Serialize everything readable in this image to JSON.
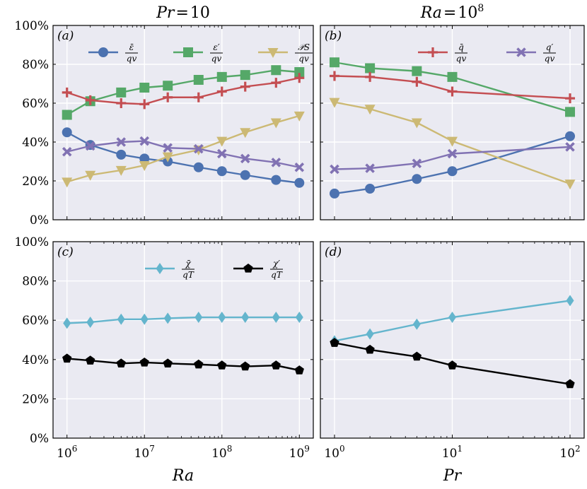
{
  "chart_data": [
    {
      "panel": "a",
      "type": "line",
      "title": "Pr = 10",
      "title_parts": [
        "Pr",
        "=",
        "10"
      ],
      "panel_label": "(a)",
      "xscale": "log",
      "xlim": [
        1000000,
        1000000000
      ],
      "ylim": [
        0,
        100
      ],
      "yticks": [
        "0%",
        "20%",
        "40%",
        "60%",
        "80%",
        "100%"
      ],
      "x": [
        1000000,
        2000000,
        5000000,
        10000000,
        20000000,
        50000000,
        100000000,
        200000000,
        500000000,
        1000000000
      ],
      "series": [
        {
          "name": "eps_bar/q_v",
          "num": "ε̄",
          "den": "qv",
          "color": "#4c72b0",
          "marker": "circle",
          "values": [
            45.0,
            38.5,
            33.5,
            31.5,
            30.0,
            27.0,
            25.0,
            23.0,
            20.5,
            19.0
          ]
        },
        {
          "name": "eps_prime/q_v",
          "num": "ε′",
          "den": "qv",
          "color": "#55a868",
          "marker": "square",
          "values": [
            54.0,
            61.0,
            65.5,
            68.0,
            69.0,
            72.0,
            73.5,
            74.5,
            77.0,
            76.0
          ]
        },
        {
          "name": "P_S/q_v",
          "num": "𝒫S",
          "den": "qv",
          "color": "#ccb974",
          "marker": "triangle-down",
          "values": [
            19.5,
            23.0,
            25.5,
            28.0,
            32.5,
            36.0,
            40.5,
            45.0,
            50.0,
            53.5
          ]
        },
        {
          "name": "q_bar/q_v",
          "color": "#c44e52",
          "marker": "plus",
          "values": [
            65.5,
            61.5,
            60.0,
            59.5,
            63.0,
            63.0,
            66.0,
            68.5,
            70.5,
            73.0
          ]
        },
        {
          "name": "q_prime/q_v",
          "color": "#8172b3",
          "marker": "x",
          "values": [
            35.0,
            38.0,
            40.0,
            40.5,
            37.0,
            36.5,
            34.0,
            31.5,
            29.5,
            27.0
          ]
        }
      ],
      "legend_series": [
        0,
        1,
        2
      ]
    },
    {
      "panel": "b",
      "type": "line",
      "title": "Ra = 10^8",
      "title_parts": [
        "Ra",
        "=",
        "10",
        "8"
      ],
      "panel_label": "(b)",
      "xscale": "log",
      "xlim": [
        1,
        100
      ],
      "ylim": [
        0,
        100
      ],
      "x": [
        1,
        2,
        5,
        10,
        100
      ],
      "series": [
        {
          "name": "eps_bar/q_v",
          "color": "#4c72b0",
          "marker": "circle",
          "values": [
            13.5,
            16.0,
            21.0,
            25.0,
            43.0
          ]
        },
        {
          "name": "eps_prime/q_v",
          "color": "#55a868",
          "marker": "square",
          "values": [
            81.0,
            78.0,
            76.5,
            73.5,
            55.5
          ]
        },
        {
          "name": "P_S/q_v",
          "color": "#ccb974",
          "marker": "triangle-down",
          "values": [
            60.5,
            57.0,
            50.0,
            40.5,
            18.5
          ]
        },
        {
          "name": "q_bar/q_v",
          "num": "q̄",
          "den": "qv",
          "color": "#c44e52",
          "marker": "plus",
          "values": [
            74.0,
            73.5,
            71.0,
            66.0,
            62.5
          ]
        },
        {
          "name": "q_prime/q_v",
          "num": "q′",
          "den": "qv",
          "color": "#8172b3",
          "marker": "x",
          "values": [
            26.0,
            26.5,
            29.0,
            34.0,
            37.5
          ]
        }
      ],
      "legend_series": [
        3,
        4
      ]
    },
    {
      "panel": "c",
      "type": "line",
      "panel_label": "(c)",
      "xscale": "log",
      "xlabel": "Ra",
      "xlim": [
        1000000,
        1000000000
      ],
      "ylim": [
        0,
        100
      ],
      "yticks": [
        "0%",
        "20%",
        "40%",
        "60%",
        "80%",
        "100%"
      ],
      "xticks": [
        {
          "base": "10",
          "exp": "6"
        },
        {
          "base": "10",
          "exp": "7"
        },
        {
          "base": "10",
          "exp": "8"
        },
        {
          "base": "10",
          "exp": "9"
        }
      ],
      "x": [
        1000000,
        2000000,
        5000000,
        10000000,
        20000000,
        50000000,
        100000000,
        200000000,
        500000000,
        1000000000
      ],
      "series": [
        {
          "name": "chi_bar/q_T",
          "num": "χ̄",
          "den": "qT",
          "color": "#64b5cd",
          "marker": "diamond",
          "values": [
            58.5,
            59.0,
            60.5,
            60.5,
            61.0,
            61.5,
            61.5,
            61.5,
            61.5,
            61.5
          ]
        },
        {
          "name": "chi_prime/q_T",
          "num": "χ′",
          "den": "qT",
          "color": "#000000",
          "marker": "pentagon",
          "values": [
            40.5,
            39.5,
            38.0,
            38.5,
            38.0,
            37.5,
            37.0,
            36.5,
            37.0,
            34.5
          ]
        }
      ],
      "legend_series": [
        0,
        1
      ]
    },
    {
      "panel": "d",
      "type": "line",
      "panel_label": "(d)",
      "xscale": "log",
      "xlabel": "Pr",
      "xlim": [
        1,
        100
      ],
      "ylim": [
        0,
        100
      ],
      "xticks": [
        {
          "base": "10",
          "exp": "0"
        },
        {
          "base": "10",
          "exp": "1"
        },
        {
          "base": "10",
          "exp": "2"
        }
      ],
      "x": [
        1,
        2,
        5,
        10,
        100
      ],
      "series": [
        {
          "name": "chi_bar/q_T",
          "color": "#64b5cd",
          "marker": "diamond",
          "values": [
            49.5,
            53.0,
            58.0,
            61.5,
            70.0
          ]
        },
        {
          "name": "chi_prime/q_T",
          "color": "#000000",
          "marker": "pentagon",
          "values": [
            48.5,
            45.0,
            41.5,
            37.0,
            27.5
          ]
        }
      ],
      "legend_series": []
    }
  ]
}
